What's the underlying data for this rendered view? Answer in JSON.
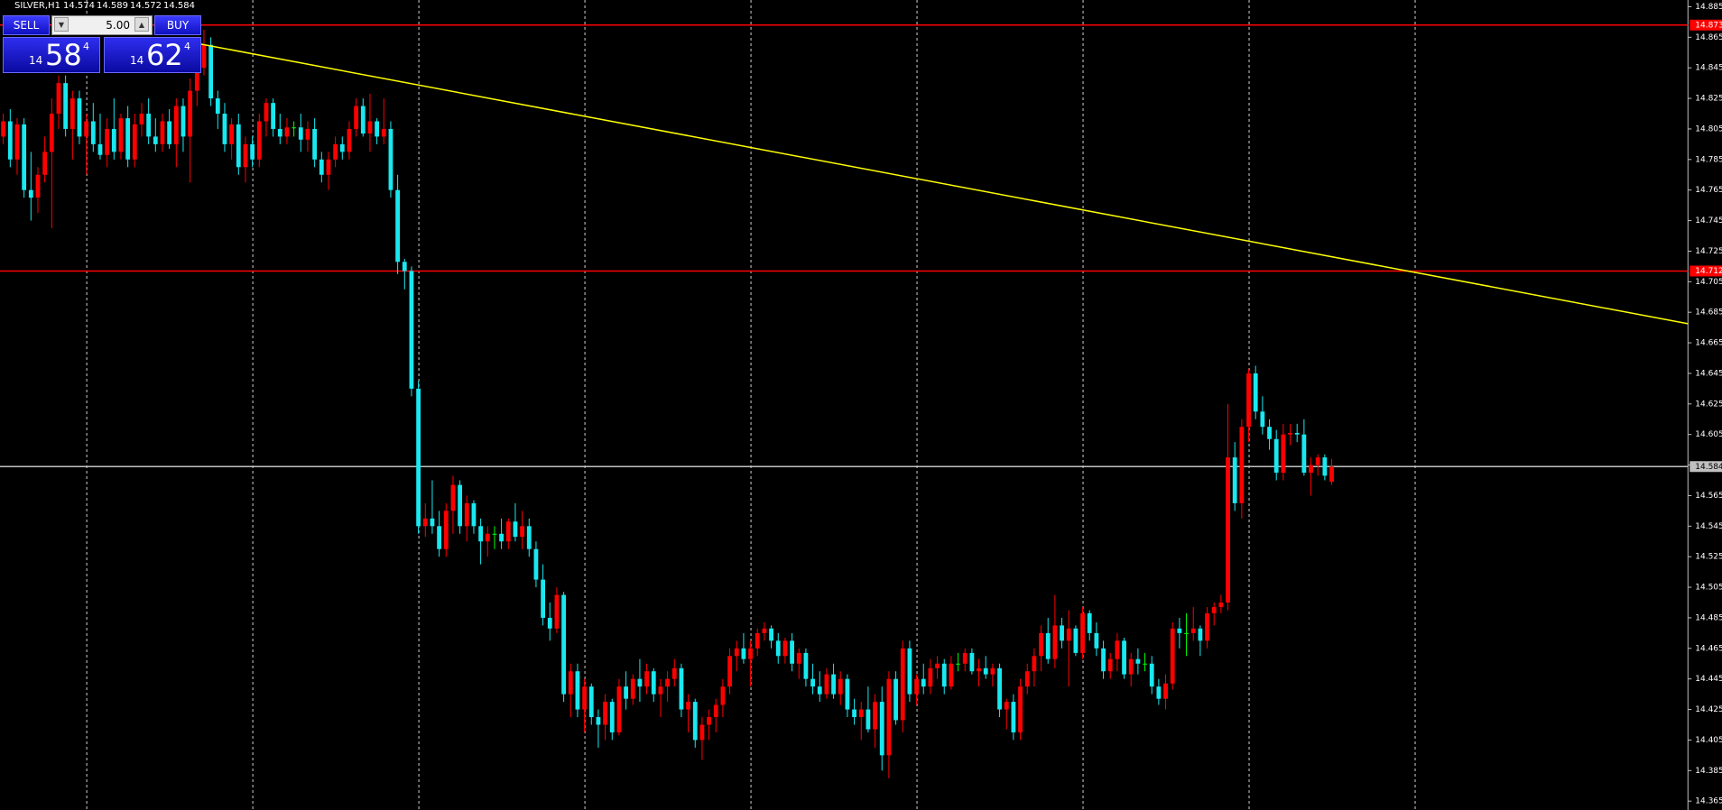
{
  "chart_data": {
    "type": "candlestick",
    "title": "SILVER,H1",
    "ylim": [
      14.3592,
      14.8894
    ],
    "yticks": [
      14.365,
      14.385,
      14.405,
      14.425,
      14.445,
      14.465,
      14.485,
      14.505,
      14.525,
      14.545,
      14.565,
      14.585,
      14.605,
      14.625,
      14.645,
      14.665,
      14.685,
      14.705,
      14.725,
      14.745,
      14.765,
      14.785,
      14.805,
      14.825,
      14.845,
      14.865,
      14.885
    ],
    "colors": {
      "up": "#ff0000",
      "down": "#19e8f0",
      "doji": "#00ff00",
      "trendline": "#ffff00"
    },
    "candles": [
      [
        14.8,
        14.815,
        14.795,
        14.81
      ],
      [
        14.81,
        14.818,
        14.78,
        14.785
      ],
      [
        14.785,
        14.812,
        14.775,
        14.808
      ],
      [
        14.808,
        14.812,
        14.76,
        14.765
      ],
      [
        14.765,
        14.79,
        14.745,
        14.76
      ],
      [
        14.76,
        14.78,
        14.75,
        14.775
      ],
      [
        14.775,
        14.8,
        14.77,
        14.79
      ],
      [
        14.79,
        14.825,
        14.74,
        14.815
      ],
      [
        14.815,
        14.84,
        14.805,
        14.835
      ],
      [
        14.835,
        14.84,
        14.8,
        14.805
      ],
      [
        14.805,
        14.83,
        14.785,
        14.825
      ],
      [
        14.825,
        14.83,
        14.795,
        14.8
      ],
      [
        14.8,
        14.815,
        14.775,
        14.81
      ],
      [
        14.81,
        14.822,
        14.79,
        14.795
      ],
      [
        14.795,
        14.815,
        14.785,
        14.788
      ],
      [
        14.788,
        14.812,
        14.78,
        14.805
      ],
      [
        14.805,
        14.825,
        14.785,
        14.79
      ],
      [
        14.79,
        14.815,
        14.785,
        14.812
      ],
      [
        14.812,
        14.82,
        14.78,
        14.785
      ],
      [
        14.785,
        14.815,
        14.78,
        14.808
      ],
      [
        14.808,
        14.822,
        14.8,
        14.815
      ],
      [
        14.815,
        14.825,
        14.795,
        14.8
      ],
      [
        14.8,
        14.812,
        14.79,
        14.795
      ],
      [
        14.795,
        14.815,
        14.79,
        14.81
      ],
      [
        14.81,
        14.818,
        14.792,
        14.795
      ],
      [
        14.795,
        14.825,
        14.78,
        14.82
      ],
      [
        14.82,
        14.825,
        14.79,
        14.8
      ],
      [
        14.8,
        14.838,
        14.77,
        14.83
      ],
      [
        14.83,
        14.85,
        14.82,
        14.845
      ],
      [
        14.845,
        14.87,
        14.84,
        14.86
      ],
      [
        14.86,
        14.865,
        14.82,
        14.825
      ],
      [
        14.825,
        14.83,
        14.805,
        14.815
      ],
      [
        14.815,
        14.822,
        14.79,
        14.795
      ],
      [
        14.795,
        14.812,
        14.785,
        14.808
      ],
      [
        14.808,
        14.815,
        14.775,
        14.78
      ],
      [
        14.78,
        14.8,
        14.77,
        14.795
      ],
      [
        14.795,
        14.8,
        14.78,
        14.785
      ],
      [
        14.785,
        14.815,
        14.78,
        14.81
      ],
      [
        14.81,
        14.825,
        14.8,
        14.822
      ],
      [
        14.822,
        14.825,
        14.8,
        14.805
      ],
      [
        14.805,
        14.815,
        14.795,
        14.8
      ],
      [
        14.8,
        14.812,
        14.795,
        14.806
      ],
      [
        14.806,
        14.81,
        14.8,
        14.806
      ],
      [
        14.806,
        14.815,
        14.79,
        14.798
      ],
      [
        14.798,
        14.81,
        14.79,
        14.805
      ],
      [
        14.805,
        14.812,
        14.78,
        14.785
      ],
      [
        14.785,
        14.79,
        14.77,
        14.775
      ],
      [
        14.775,
        14.79,
        14.765,
        14.785
      ],
      [
        14.785,
        14.8,
        14.78,
        14.795
      ],
      [
        14.795,
        14.8,
        14.785,
        14.79
      ],
      [
        14.79,
        14.81,
        14.785,
        14.805
      ],
      [
        14.805,
        14.825,
        14.8,
        14.82
      ],
      [
        14.82,
        14.825,
        14.8,
        14.802
      ],
      [
        14.802,
        14.828,
        14.79,
        14.81
      ],
      [
        14.81,
        14.812,
        14.795,
        14.8
      ],
      [
        14.8,
        14.825,
        14.795,
        14.805
      ],
      [
        14.805,
        14.81,
        14.76,
        14.765
      ],
      [
        14.765,
        14.775,
        14.71,
        14.718
      ],
      [
        14.718,
        14.72,
        14.7,
        14.712
      ],
      [
        14.712,
        14.715,
        14.63,
        14.635
      ],
      [
        14.635,
        14.64,
        14.54,
        14.545
      ],
      [
        14.545,
        14.56,
        14.538,
        14.55
      ],
      [
        14.55,
        14.575,
        14.54,
        14.545
      ],
      [
        14.545,
        14.555,
        14.525,
        14.53
      ],
      [
        14.53,
        14.56,
        14.525,
        14.555
      ],
      [
        14.555,
        14.578,
        14.54,
        14.572
      ],
      [
        14.572,
        14.575,
        14.54,
        14.545
      ],
      [
        14.545,
        14.565,
        14.535,
        14.56
      ],
      [
        14.56,
        14.562,
        14.54,
        14.545
      ],
      [
        14.545,
        14.55,
        14.52,
        14.535
      ],
      [
        14.535,
        14.545,
        14.525,
        14.54
      ],
      [
        14.54,
        14.545,
        14.53,
        14.54
      ],
      [
        14.54,
        14.55,
        14.53,
        14.535
      ],
      [
        14.535,
        14.55,
        14.53,
        14.548
      ],
      [
        14.548,
        14.56,
        14.535,
        14.538
      ],
      [
        14.538,
        14.555,
        14.53,
        14.545
      ],
      [
        14.545,
        14.55,
        14.525,
        14.53
      ],
      [
        14.53,
        14.535,
        14.505,
        14.51
      ],
      [
        14.51,
        14.52,
        14.48,
        14.485
      ],
      [
        14.485,
        14.495,
        14.47,
        14.478
      ],
      [
        14.478,
        14.505,
        14.475,
        14.5
      ],
      [
        14.5,
        14.502,
        14.43,
        14.435
      ],
      [
        14.435,
        14.455,
        14.42,
        14.45
      ],
      [
        14.45,
        14.455,
        14.42,
        14.425
      ],
      [
        14.425,
        14.445,
        14.41,
        14.44
      ],
      [
        14.44,
        14.442,
        14.415,
        14.42
      ],
      [
        14.42,
        14.425,
        14.4,
        14.415
      ],
      [
        14.415,
        14.435,
        14.405,
        14.43
      ],
      [
        14.43,
        14.432,
        14.405,
        14.41
      ],
      [
        14.41,
        14.445,
        14.408,
        14.44
      ],
      [
        14.44,
        14.45,
        14.425,
        14.432
      ],
      [
        14.432,
        14.448,
        14.428,
        14.445
      ],
      [
        14.445,
        14.458,
        14.43,
        14.44
      ],
      [
        14.44,
        14.455,
        14.435,
        14.45
      ],
      [
        14.45,
        14.452,
        14.43,
        14.435
      ],
      [
        14.435,
        14.445,
        14.42,
        14.44
      ],
      [
        14.44,
        14.45,
        14.43,
        14.445
      ],
      [
        14.445,
        14.458,
        14.44,
        14.452
      ],
      [
        14.452,
        14.455,
        14.42,
        14.425
      ],
      [
        14.425,
        14.435,
        14.41,
        14.43
      ],
      [
        14.43,
        14.432,
        14.4,
        14.405
      ],
      [
        14.405,
        14.42,
        14.392,
        14.415
      ],
      [
        14.415,
        14.425,
        14.405,
        14.42
      ],
      [
        14.42,
        14.432,
        14.41,
        14.428
      ],
      [
        14.428,
        14.445,
        14.42,
        14.44
      ],
      [
        14.44,
        14.465,
        14.435,
        14.46
      ],
      [
        14.46,
        14.47,
        14.45,
        14.465
      ],
      [
        14.465,
        14.475,
        14.455,
        14.458
      ],
      [
        14.458,
        14.47,
        14.44,
        14.465
      ],
      [
        14.465,
        14.478,
        14.46,
        14.475
      ],
      [
        14.475,
        14.482,
        14.47,
        14.478
      ],
      [
        14.478,
        14.48,
        14.465,
        14.47
      ],
      [
        14.47,
        14.475,
        14.455,
        14.46
      ],
      [
        14.46,
        14.472,
        14.455,
        14.47
      ],
      [
        14.47,
        14.475,
        14.45,
        14.455
      ],
      [
        14.455,
        14.465,
        14.445,
        14.462
      ],
      [
        14.462,
        14.465,
        14.44,
        14.445
      ],
      [
        14.445,
        14.455,
        14.435,
        14.44
      ],
      [
        14.44,
        14.45,
        14.43,
        14.435
      ],
      [
        14.435,
        14.452,
        14.432,
        14.448
      ],
      [
        14.448,
        14.455,
        14.432,
        14.435
      ],
      [
        14.435,
        14.45,
        14.428,
        14.445
      ],
      [
        14.445,
        14.448,
        14.42,
        14.425
      ],
      [
        14.425,
        14.432,
        14.415,
        14.42
      ],
      [
        14.42,
        14.43,
        14.405,
        14.425
      ],
      [
        14.425,
        14.44,
        14.41,
        14.412
      ],
      [
        14.412,
        14.435,
        14.4,
        14.43
      ],
      [
        14.43,
        14.44,
        14.385,
        14.395
      ],
      [
        14.395,
        14.45,
        14.38,
        14.445
      ],
      [
        14.445,
        14.45,
        14.415,
        14.418
      ],
      [
        14.418,
        14.47,
        14.41,
        14.465
      ],
      [
        14.465,
        14.47,
        14.43,
        14.435
      ],
      [
        14.435,
        14.448,
        14.428,
        14.445
      ],
      [
        14.445,
        14.455,
        14.435,
        14.44
      ],
      [
        14.44,
        14.458,
        14.435,
        14.452
      ],
      [
        14.452,
        14.46,
        14.445,
        14.455
      ],
      [
        14.455,
        14.458,
        14.435,
        14.44
      ],
      [
        14.44,
        14.46,
        14.438,
        14.455
      ],
      [
        14.455,
        14.462,
        14.45,
        14.455
      ],
      [
        14.455,
        14.465,
        14.45,
        14.462
      ],
      [
        14.462,
        14.465,
        14.448,
        14.45
      ],
      [
        14.45,
        14.458,
        14.44,
        14.452
      ],
      [
        14.452,
        14.46,
        14.445,
        14.448
      ],
      [
        14.448,
        14.455,
        14.44,
        14.452
      ],
      [
        14.452,
        14.455,
        14.42,
        14.425
      ],
      [
        14.425,
        14.432,
        14.412,
        14.43
      ],
      [
        14.43,
        14.435,
        14.405,
        14.41
      ],
      [
        14.41,
        14.445,
        14.405,
        14.44
      ],
      [
        14.44,
        14.455,
        14.435,
        14.45
      ],
      [
        14.45,
        14.465,
        14.44,
        14.46
      ],
      [
        14.46,
        14.48,
        14.45,
        14.475
      ],
      [
        14.475,
        14.485,
        14.455,
        14.458
      ],
      [
        14.458,
        14.5,
        14.452,
        14.48
      ],
      [
        14.48,
        14.485,
        14.465,
        14.47
      ],
      [
        14.47,
        14.49,
        14.44,
        14.478
      ],
      [
        14.478,
        14.48,
        14.46,
        14.462
      ],
      [
        14.462,
        14.492,
        14.458,
        14.488
      ],
      [
        14.488,
        14.49,
        14.47,
        14.475
      ],
      [
        14.475,
        14.482,
        14.46,
        14.465
      ],
      [
        14.465,
        14.47,
        14.445,
        14.45
      ],
      [
        14.45,
        14.462,
        14.445,
        14.458
      ],
      [
        14.458,
        14.475,
        14.45,
        14.47
      ],
      [
        14.47,
        14.472,
        14.445,
        14.448
      ],
      [
        14.448,
        14.462,
        14.44,
        14.458
      ],
      [
        14.458,
        14.465,
        14.448,
        14.455
      ],
      [
        14.455,
        14.462,
        14.45,
        14.455
      ],
      [
        14.455,
        14.46,
        14.435,
        14.44
      ],
      [
        14.44,
        14.445,
        14.428,
        14.432
      ],
      [
        14.432,
        14.448,
        14.425,
        14.442
      ],
      [
        14.442,
        14.482,
        14.438,
        14.478
      ],
      [
        14.478,
        14.485,
        14.465,
        14.475
      ],
      [
        14.475,
        14.488,
        14.46,
        14.475
      ],
      [
        14.475,
        14.492,
        14.47,
        14.478
      ],
      [
        14.478,
        14.48,
        14.46,
        14.47
      ],
      [
        14.47,
        14.492,
        14.465,
        14.488
      ],
      [
        14.488,
        14.495,
        14.48,
        14.492
      ],
      [
        14.492,
        14.5,
        14.488,
        14.495
      ],
      [
        14.495,
        14.625,
        14.49,
        14.59
      ],
      [
        14.59,
        14.6,
        14.555,
        14.56
      ],
      [
        14.56,
        14.615,
        14.55,
        14.61
      ],
      [
        14.61,
        14.648,
        14.6,
        14.645
      ],
      [
        14.645,
        14.65,
        14.615,
        14.62
      ],
      [
        14.62,
        14.63,
        14.605,
        14.61
      ],
      [
        14.61,
        14.615,
        14.595,
        14.602
      ],
      [
        14.602,
        14.608,
        14.575,
        14.58
      ],
      [
        14.58,
        14.612,
        14.575,
        14.605
      ],
      [
        14.605,
        14.612,
        14.598,
        14.606
      ],
      [
        14.606,
        14.612,
        14.6,
        14.605
      ],
      [
        14.605,
        14.615,
        14.578,
        14.58
      ],
      [
        14.58,
        14.59,
        14.565,
        14.585
      ],
      [
        14.585,
        14.592,
        14.578,
        14.59
      ],
      [
        14.59,
        14.592,
        14.575,
        14.578
      ],
      [
        14.574,
        14.589,
        14.572,
        14.584
      ]
    ],
    "hlines": [
      {
        "value": 14.873,
        "color": "#ff0000"
      },
      {
        "value": 14.712,
        "color": "#ff0000"
      },
      {
        "value": 14.584,
        "color": "#c0c0c0"
      }
    ],
    "trendline": {
      "x": [
        28,
        243.5
      ],
      "price": [
        14.861,
        14.6775
      ]
    }
  },
  "trade_panel": {
    "sell": "SELL",
    "buy": "BUY",
    "volume": "5.00",
    "bid": [
      "14",
      "58",
      "4"
    ],
    "ask": [
      "14",
      "62",
      "4"
    ]
  }
}
